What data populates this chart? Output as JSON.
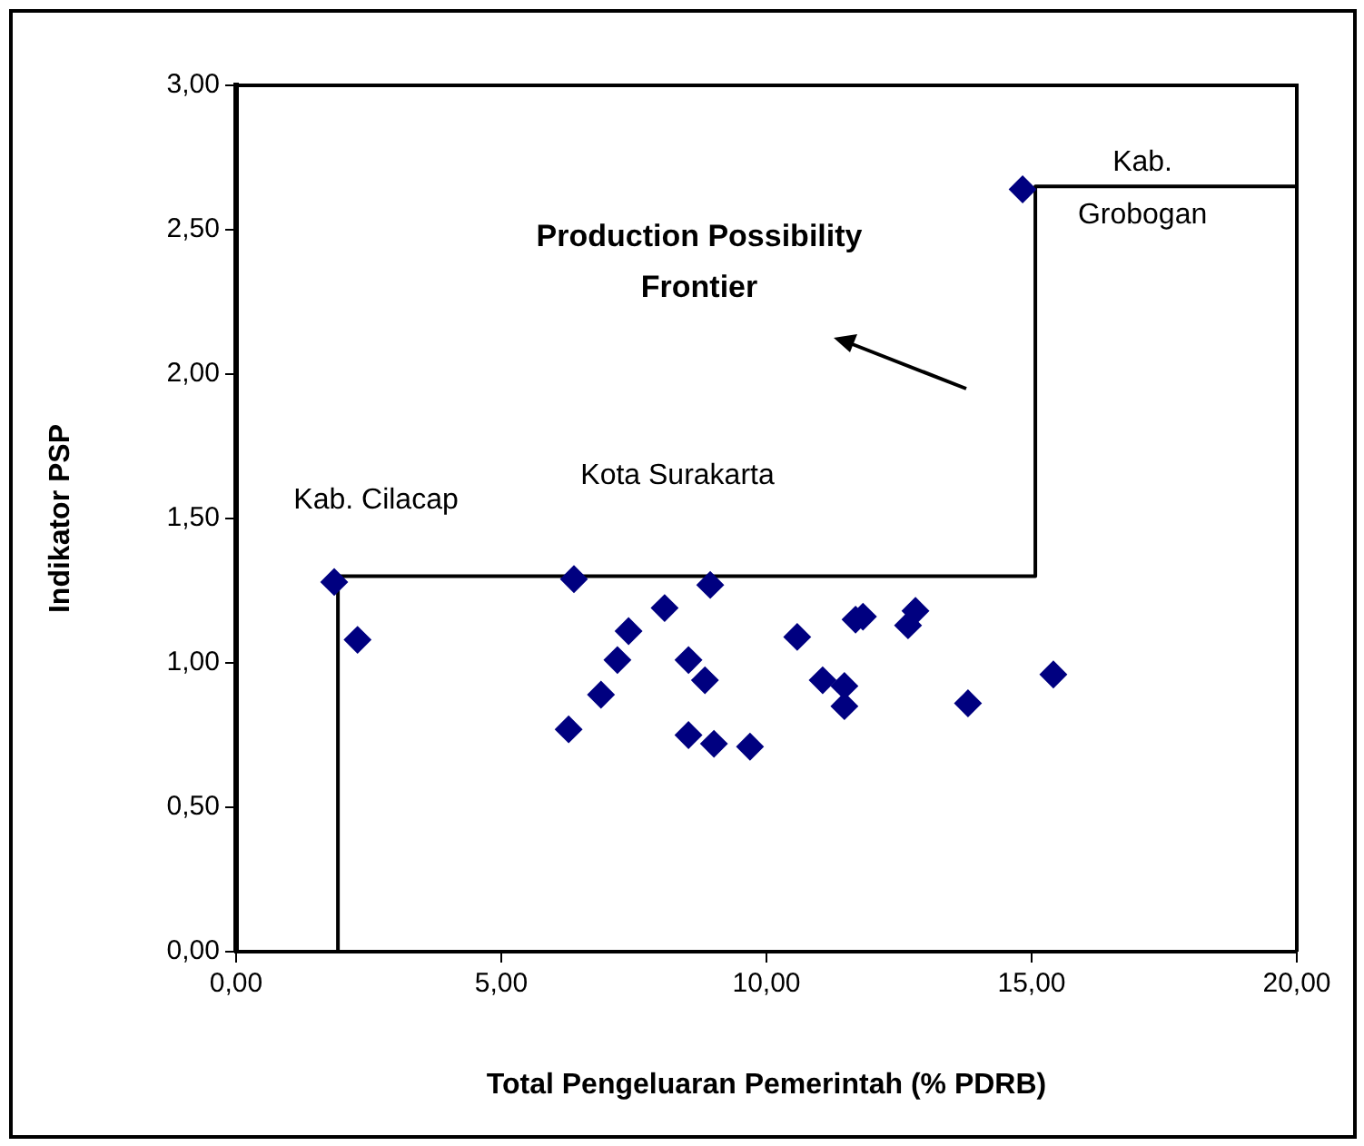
{
  "chart_data": {
    "type": "scatter",
    "xlabel": "Total Pengeluaran Pemerintah (% PDRB)",
    "ylabel": "Indikator PSP",
    "xlim": [
      0,
      20
    ],
    "ylim": [
      0,
      3
    ],
    "xticks": [
      {
        "value": 0,
        "label": "0,00"
      },
      {
        "value": 5,
        "label": "5,00"
      },
      {
        "value": 10,
        "label": "10,00"
      },
      {
        "value": 15,
        "label": "15,00"
      },
      {
        "value": 20,
        "label": "20,00"
      }
    ],
    "yticks": [
      {
        "value": 0,
        "label": "0,00"
      },
      {
        "value": 0.5,
        "label": "0,50"
      },
      {
        "value": 1,
        "label": "1,00"
      },
      {
        "value": 1.5,
        "label": "1,50"
      },
      {
        "value": 2,
        "label": "2,00"
      },
      {
        "value": 2.5,
        "label": "2,50"
      },
      {
        "value": 3,
        "label": "3,00"
      }
    ],
    "grid": false,
    "legend": false,
    "marker": "diamond",
    "series": [
      {
        "color": "#000080",
        "x": [
          1.85,
          2.29,
          6.37,
          6.27,
          6.88,
          7.19,
          7.4,
          8.08,
          8.94,
          8.53,
          8.84,
          8.53,
          9.01,
          9.69,
          10.58,
          11.06,
          11.47,
          11.47,
          11.68,
          11.82,
          12.67,
          12.81,
          13.8,
          15.41,
          14.83
        ],
        "values": [
          1.28,
          1.08,
          1.29,
          0.77,
          0.89,
          1.01,
          1.11,
          1.19,
          1.27,
          1.01,
          0.94,
          0.75,
          0.72,
          0.71,
          1.09,
          0.94,
          0.92,
          0.85,
          1.15,
          1.16,
          1.13,
          1.18,
          0.86,
          0.96,
          2.64
        ]
      },
      {
        "type": "line",
        "color": "#000000",
        "marker": "none",
        "x": [
          1.92,
          1.92,
          15.07,
          15.07,
          20
        ],
        "values": [
          0,
          1.3,
          1.3,
          2.65,
          2.65
        ]
      }
    ],
    "annotations": [
      {
        "text": "Kab. Cilacap",
        "x": 1.85,
        "y": 1.28
      },
      {
        "text": "Kab. Grobogan",
        "x": 14.83,
        "y": 2.64
      },
      "Kota Surakarta",
      "Production Possibility Frontier"
    ]
  }
}
